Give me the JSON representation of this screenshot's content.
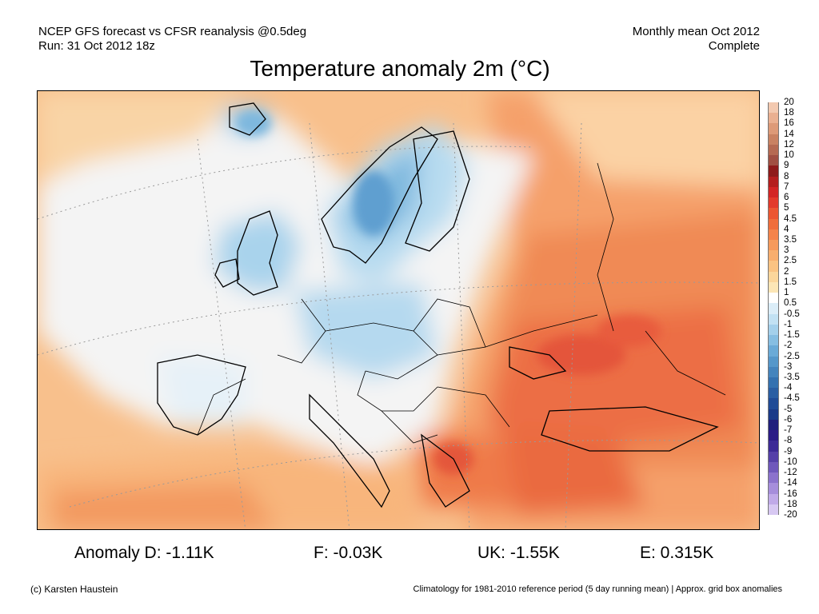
{
  "header": {
    "source_line": "NCEP GFS forecast vs CFSR reanalysis @0.5deg",
    "run_line": "Run: 31 Oct 2012 18z",
    "period_line": "Monthly mean Oct 2012",
    "status_line": "Complete"
  },
  "title": "Temperature anomaly 2m (°C)",
  "colorbar": {
    "labels": [
      "20",
      "18",
      "16",
      "14",
      "12",
      "10",
      "9",
      "8",
      "7",
      "6",
      "5",
      "4.5",
      "4",
      "3.5",
      "3",
      "2.5",
      "2",
      "1.5",
      "1",
      "0.5",
      "-0.5",
      "-1",
      "-1.5",
      "-2",
      "-2.5",
      "-3",
      "-3.5",
      "-4",
      "-4.5",
      "-5",
      "-6",
      "-7",
      "-8",
      "-9",
      "-10",
      "-12",
      "-14",
      "-16",
      "-18",
      "-20"
    ],
    "colors": [
      "#f3c9b0",
      "#eab091",
      "#dd9a78",
      "#c98262",
      "#b56a52",
      "#a04f42",
      "#8e1a1a",
      "#b41e1e",
      "#d32525",
      "#e33a2b",
      "#ec5631",
      "#f06e3b",
      "#f4834a",
      "#f69a5c",
      "#f8ae6e",
      "#fac383",
      "#fbd69b",
      "#fce6b6",
      "#ffffff",
      "#dbedf8",
      "#c2e1f3",
      "#a4d0eb",
      "#86bee2",
      "#6aaad7",
      "#5597ca",
      "#4484bd",
      "#3471b0",
      "#2a5ea3",
      "#204b96",
      "#1a3a88",
      "#201f7c",
      "#2b1b86",
      "#3d2a96",
      "#5540a8",
      "#6f58bb",
      "#8b72cc",
      "#a68edb",
      "#c0aae8",
      "#d7c8f2"
    ]
  },
  "map": {
    "region": "Europe",
    "colors": {
      "ocean_neutral": "#f4f4f4",
      "cold_light": "#d4eaf7",
      "cold_mid": "#a9d3ec",
      "cold_strong": "#6fafd8",
      "warm_light": "#fde3b5",
      "warm_mid": "#f9b882",
      "warm_strong": "#f28a55",
      "warm_hot": "#ec6a3c",
      "hot_core": "#e4543a"
    }
  },
  "anomalies": {
    "germany": "Anomaly D: -1.11K",
    "france": "F: -0.03K",
    "uk": "UK: -1.55K",
    "spain": "E: 0.315K"
  },
  "footer": {
    "credit": "(c) Karsten Haustein",
    "note": "Climatology for 1981-2010 reference period (5 day running mean) | Approx. grid box anomalies"
  }
}
